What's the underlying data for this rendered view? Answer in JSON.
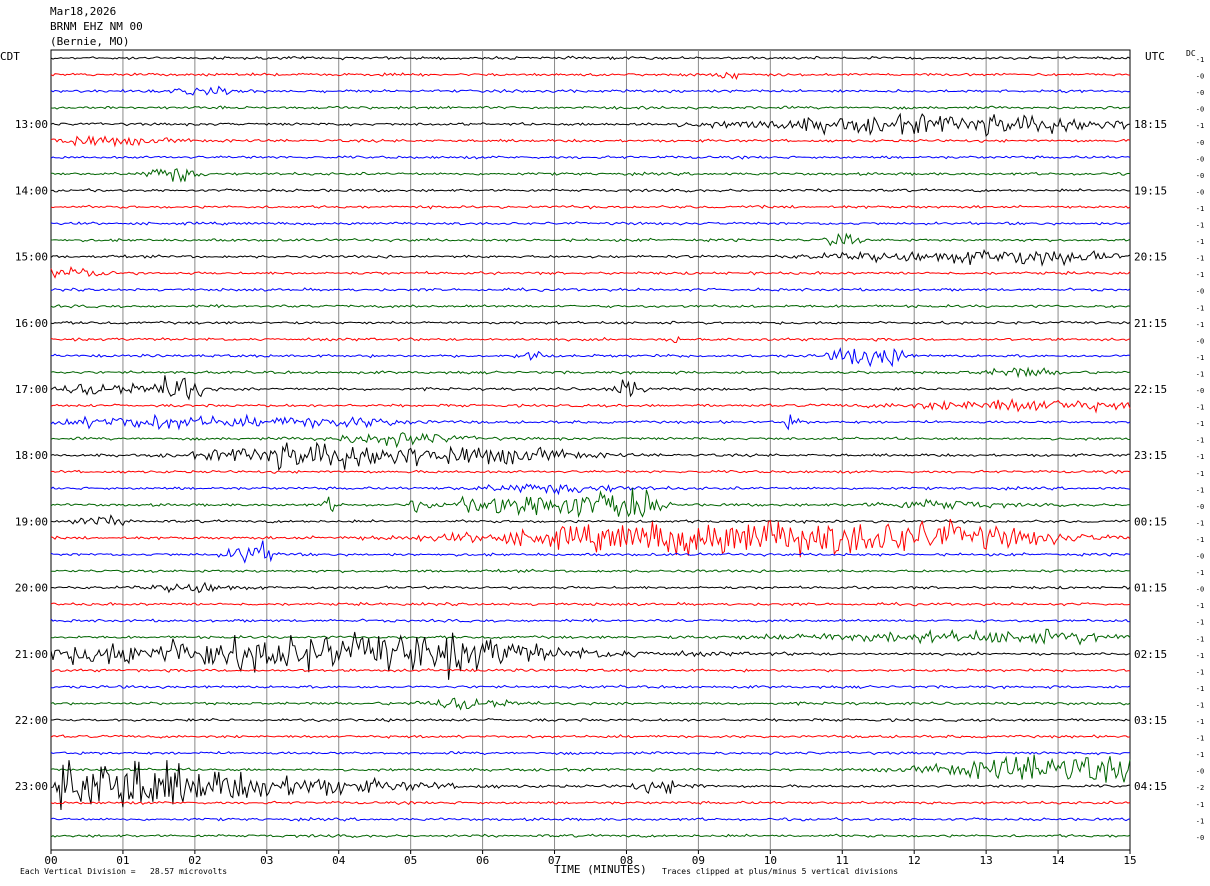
{
  "header": {
    "date": "Mar18,2026",
    "station": "BRNM EHZ NM 00",
    "location": "(Bernie, MO)"
  },
  "left_timezone": "CDT",
  "right_timezone": "UTC",
  "dc_label": "DC",
  "footer": {
    "scale_note": "Each Vertical Division =   28.57 microvolts",
    "clip_note": "Traces clipped at plus/minus 5 vertical divisions"
  },
  "chart_data": {
    "type": "line",
    "title": "",
    "xlabel": "TIME (MINUTES)",
    "ylabel": "",
    "xlim": [
      0,
      15
    ],
    "x_ticks": [
      "00",
      "01",
      "02",
      "03",
      "04",
      "05",
      "06",
      "07",
      "08",
      "09",
      "10",
      "11",
      "12",
      "13",
      "14",
      "15"
    ],
    "left_hour_labels": [
      "13:00",
      "14:00",
      "15:00",
      "16:00",
      "17:00",
      "18:00",
      "19:00",
      "20:00",
      "21:00",
      "22:00",
      "23:00"
    ],
    "right_hour_labels": [
      "18:15",
      "19:15",
      "20:15",
      "21:15",
      "22:15",
      "23:15",
      "00:15",
      "01:15",
      "02:15",
      "03:15",
      "04:15"
    ],
    "trace_colors": [
      "#000000",
      "#ff0000",
      "#0000ff",
      "#006400"
    ],
    "trace_count": 48,
    "dc_offsets": [
      "-1",
      "-0",
      "-0",
      "-0",
      "-1",
      "-0",
      "-0",
      "-0",
      "-0",
      "-1",
      "-1",
      "-1",
      "-1",
      "-1",
      "-0",
      "-1",
      "-1",
      "-0",
      "-1",
      "-1",
      "-0",
      "-1",
      "-1",
      "-1",
      "-1",
      "-1",
      "-1",
      "-0",
      "-1",
      "-1",
      "-0",
      "-1",
      "-0",
      "-1",
      "-1",
      "-1",
      "-1",
      "-1",
      "-1",
      "-1",
      "-1",
      "-1",
      "-1",
      "-0",
      "-2",
      "-1",
      "-1",
      "-0"
    ]
  }
}
